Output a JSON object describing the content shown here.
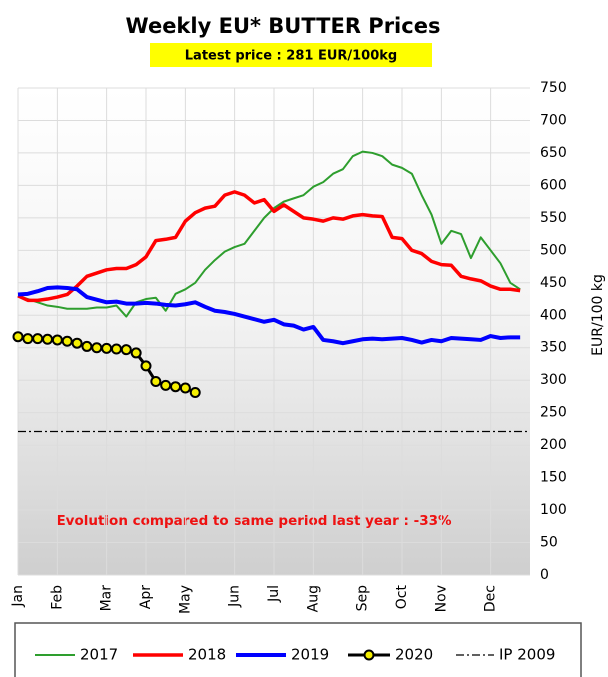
{
  "chart_data": {
    "type": "line",
    "title": "Weekly EU* BUTTER Prices",
    "subtitle": "Latest price : 281 EUR/100kg",
    "annotation": "Evolution compared to same period last year : -33%",
    "y_label": "EUR/100 kg",
    "categories": [
      "Jan",
      null,
      null,
      null,
      "Feb",
      null,
      null,
      null,
      null,
      "Mar",
      null,
      null,
      null,
      "Apr",
      null,
      null,
      null,
      "May",
      null,
      null,
      null,
      null,
      "Jun",
      null,
      null,
      null,
      "Jul",
      null,
      null,
      null,
      "Aug",
      null,
      null,
      null,
      null,
      "Sep",
      null,
      null,
      null,
      "Oct",
      null,
      null,
      null,
      "Nov",
      null,
      null,
      null,
      null,
      "Dec",
      null,
      null,
      null
    ],
    "ylim": [
      0,
      750
    ],
    "yticks": [
      0,
      50,
      100,
      150,
      200,
      250,
      300,
      350,
      400,
      450,
      500,
      550,
      600,
      650,
      700,
      750
    ],
    "grid": true,
    "series": [
      {
        "name": "2017",
        "color": "#2e9e2e",
        "width": 2,
        "values": [
          430,
          425,
          420,
          415,
          413,
          410,
          410,
          410,
          412,
          412,
          415,
          398,
          420,
          425,
          427,
          407,
          433,
          440,
          450,
          470,
          485,
          498,
          505,
          510,
          530,
          550,
          565,
          575,
          580,
          585,
          598,
          605,
          618,
          625,
          645,
          652,
          650,
          645,
          632,
          627,
          618,
          585,
          555,
          510,
          530,
          525,
          488,
          520,
          500,
          480,
          450,
          440
        ]
      },
      {
        "name": "2018",
        "color": "#ff0000",
        "width": 3.5,
        "values": [
          430,
          423,
          423,
          425,
          428,
          432,
          445,
          460,
          465,
          470,
          472,
          472,
          478,
          490,
          515,
          517,
          520,
          545,
          558,
          565,
          568,
          585,
          590,
          585,
          573,
          578,
          560,
          570,
          560,
          550,
          548,
          545,
          550,
          548,
          553,
          555,
          553,
          552,
          520,
          518,
          500,
          495,
          483,
          478,
          477,
          460,
          456,
          453,
          445,
          440,
          440,
          438
        ]
      },
      {
        "name": "2019",
        "color": "#0000ff",
        "width": 4,
        "values": [
          432,
          433,
          437,
          442,
          443,
          442,
          440,
          428,
          424,
          420,
          421,
          418,
          418,
          419,
          418,
          416,
          415,
          417,
          420,
          413,
          407,
          405,
          402,
          398,
          394,
          390,
          393,
          386,
          384,
          378,
          382,
          362,
          360,
          357,
          360,
          363,
          364,
          363,
          364,
          365,
          362,
          358,
          362,
          360,
          365,
          364,
          363,
          362,
          368,
          365,
          366,
          366
        ]
      },
      {
        "name": "2020",
        "color": "#000000",
        "marker_color": "#f5ef00",
        "width": 3,
        "markers": true,
        "values": [
          367,
          364,
          364,
          363,
          362,
          360,
          357,
          352,
          350,
          349,
          348,
          347,
          342,
          322,
          298,
          292,
          290,
          288,
          281,
          null,
          null,
          null,
          null,
          null,
          null,
          null,
          null,
          null,
          null,
          null,
          null,
          null,
          null,
          null,
          null,
          null,
          null,
          null,
          null,
          null,
          null,
          null,
          null,
          null,
          null,
          null,
          null,
          null,
          null,
          null,
          null,
          null
        ]
      }
    ],
    "reference_lines": [
      {
        "name": "IP 2009",
        "value": 221,
        "color": "#000000"
      }
    ]
  }
}
